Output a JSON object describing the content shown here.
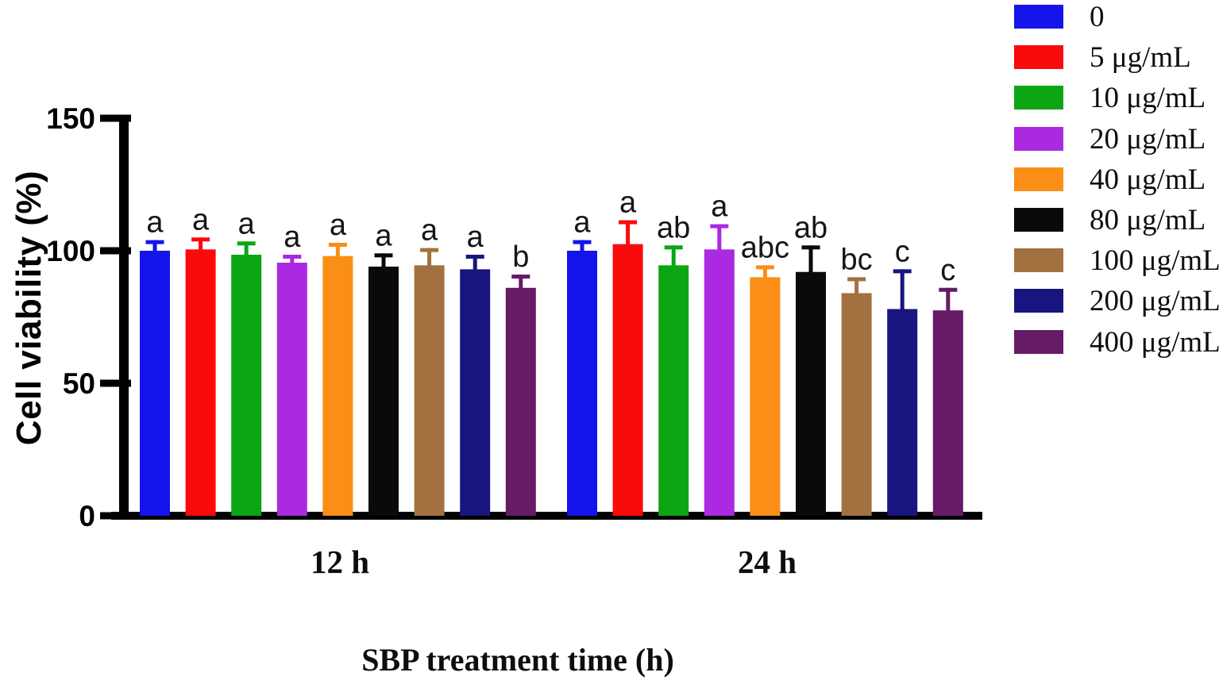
{
  "chart_data": {
    "type": "bar",
    "title": "",
    "xlabel": "SBP treatment time (h)",
    "ylabel": "Cell viability (%)",
    "ylim": [
      0,
      150
    ],
    "yticks": [
      0,
      50,
      100,
      150
    ],
    "grid": false,
    "legend_position": "top-right",
    "axis_color": "#000000",
    "letter_color": "#161616",
    "groups": [
      "12 h",
      "24 h"
    ],
    "series": [
      {
        "name": "0",
        "color": "#1414eb",
        "values": [
          100,
          100
        ],
        "errors": [
          4,
          4
        ],
        "letters": [
          "a",
          "a"
        ]
      },
      {
        "name": "5 μg/mL",
        "color": "#fa0a0a",
        "values": [
          100.5,
          102.5
        ],
        "errors": [
          4.5,
          9
        ],
        "letters": [
          "a",
          "a"
        ]
      },
      {
        "name": "10 μg/mL",
        "color": "#0ca514",
        "values": [
          98.5,
          94.5
        ],
        "errors": [
          5,
          7.5
        ],
        "letters": [
          "a",
          "ab"
        ]
      },
      {
        "name": "20 μg/mL",
        "color": "#ab29e0",
        "values": [
          95.5,
          100.5
        ],
        "errors": [
          3,
          9.5
        ],
        "letters": [
          "a",
          "a"
        ]
      },
      {
        "name": "40 μg/mL",
        "color": "#fa8e16",
        "values": [
          98,
          90
        ],
        "errors": [
          5,
          4.5
        ],
        "letters": [
          "a",
          "abc"
        ]
      },
      {
        "name": "80 μg/mL",
        "color": "#0a0a0a",
        "values": [
          94,
          92
        ],
        "errors": [
          5,
          10
        ],
        "letters": [
          "a",
          "ab"
        ]
      },
      {
        "name": "100 μg/mL",
        "color": "#a2713f",
        "values": [
          94.5,
          84
        ],
        "errors": [
          6.5,
          6
        ],
        "letters": [
          "a",
          "bc"
        ]
      },
      {
        "name": "200 μg/mL",
        "color": "#18157e",
        "values": [
          93,
          78
        ],
        "errors": [
          5.5,
          15
        ],
        "letters": [
          "a",
          "c"
        ]
      },
      {
        "name": "400 μg/mL",
        "color": "#661b66",
        "values": [
          86,
          77.5
        ],
        "errors": [
          5,
          8.5
        ],
        "letters": [
          "b",
          "c"
        ]
      }
    ]
  }
}
